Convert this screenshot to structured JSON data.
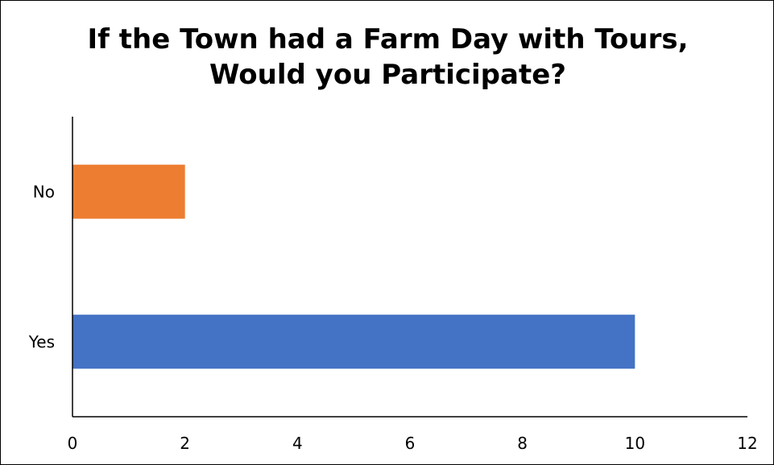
{
  "chart_data": {
    "type": "bar",
    "orientation": "horizontal",
    "title_lines": [
      "If the Town had a Farm Day with Tours,",
      "Would you Participate?"
    ],
    "categories": [
      "No",
      "Yes"
    ],
    "values": [
      2,
      10
    ],
    "colors": [
      "#ED7D31",
      "#4472C4"
    ],
    "xlim": [
      0,
      12
    ],
    "xticks": [
      "0",
      "2",
      "4",
      "6",
      "8",
      "10",
      "12"
    ],
    "grid": false,
    "legend": "none"
  }
}
